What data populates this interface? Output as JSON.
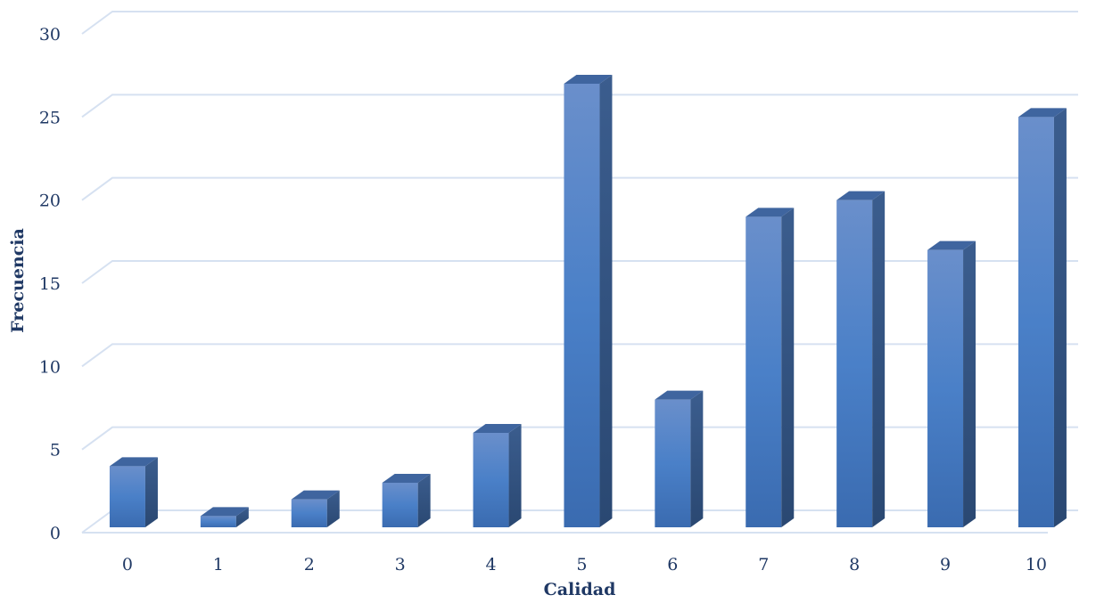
{
  "chart_data": {
    "type": "bar",
    "categories": [
      "0",
      "1",
      "2",
      "3",
      "4",
      "5",
      "6",
      "7",
      "8",
      "9",
      "10"
    ],
    "values": [
      4,
      1,
      2,
      3,
      6,
      27,
      8,
      19,
      20,
      17,
      25
    ],
    "xlabel": "Calidad",
    "ylabel": "Frecuencia",
    "ylim": [
      0,
      30
    ],
    "yticks": [
      "0",
      "5",
      "10",
      "15",
      "20",
      "25",
      "30"
    ],
    "grid": true,
    "style": "3d-column",
    "bar_color": "#4F81BD",
    "axis_text_color": "#1F3864"
  }
}
